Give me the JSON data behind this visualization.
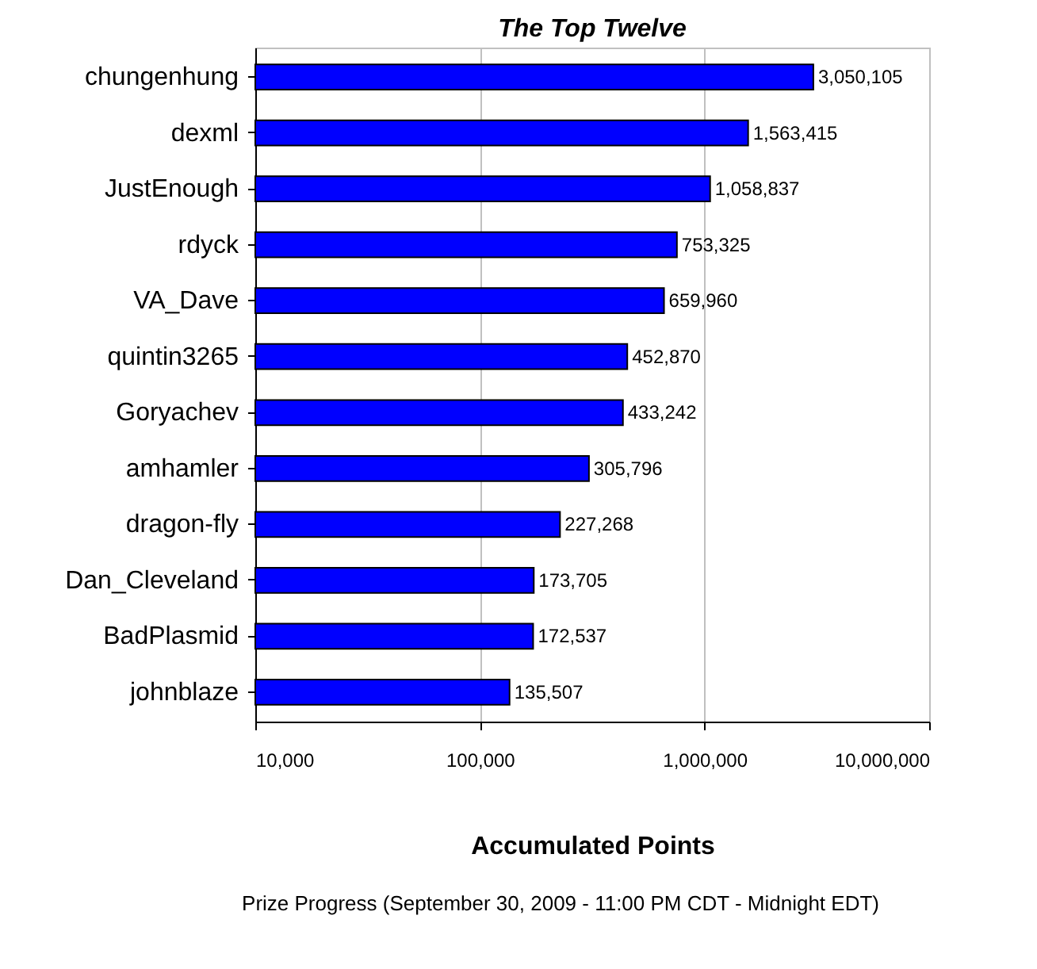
{
  "chart_data": {
    "type": "bar",
    "orientation": "horizontal",
    "title": "The Top Twelve",
    "xlabel": "Accumulated Points",
    "categories": [
      "chungenhung",
      "dexml",
      "JustEnough",
      "rdyck",
      "VA_Dave",
      "quintin3265",
      "Goryachev",
      "amhamler",
      "dragon-fly",
      "Dan_Cleveland",
      "BadPlasmid",
      "johnblaze"
    ],
    "values": [
      3050105,
      1563415,
      1058837,
      753325,
      659960,
      452870,
      433242,
      305796,
      227268,
      173705,
      172537,
      135507
    ],
    "value_labels": [
      "3,050,105",
      "1,563,415",
      "1,058,837",
      "753,325",
      "659,960",
      "452,870",
      "433,242",
      "305,796",
      "227,268",
      "173,705",
      "172,537",
      "135,507"
    ],
    "color": "#0000ff",
    "log": "x",
    "xlim": [
      10000,
      10000000
    ],
    "xticks": [
      {
        "value": 10000,
        "label": "10,000"
      },
      {
        "value": 100000,
        "label": "100,000"
      },
      {
        "value": 1000000,
        "label": "1,000,000"
      },
      {
        "value": 10000000,
        "label": "10,000,000"
      }
    ],
    "grid": "x",
    "annotations": [
      "Prize Progress (September 30, 2009 - 11:00 PM CDT - Midnight EDT)"
    ]
  }
}
